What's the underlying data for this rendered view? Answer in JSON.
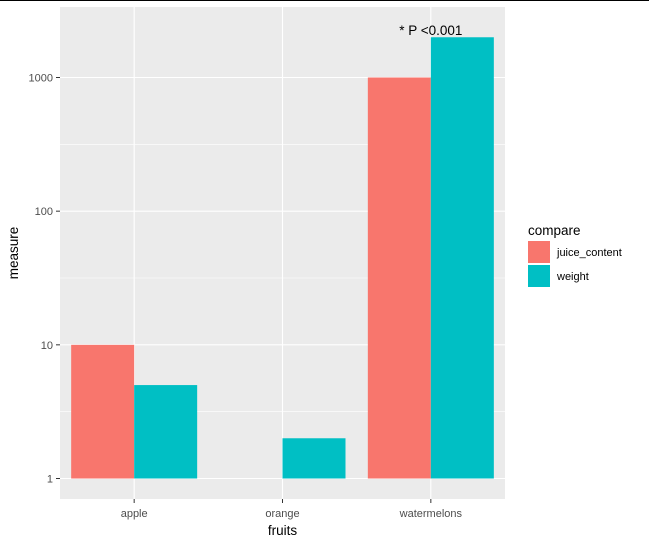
{
  "chart_data": {
    "type": "bar",
    "categories": [
      "apple",
      "orange",
      "watermelons"
    ],
    "series": [
      {
        "name": "juice_content",
        "values": [
          10,
          null,
          1000
        ],
        "color": "#F8766D"
      },
      {
        "name": "weight",
        "values": [
          5,
          2,
          2000
        ],
        "color": "#00BFC4"
      }
    ],
    "xlabel": "fruits",
    "ylabel": "measure",
    "y_scale": "log10",
    "y_ticks": [
      1,
      10,
      100,
      1000
    ],
    "y_tick_labels": [
      "1",
      "10",
      "100",
      "1000"
    ],
    "ylim": [
      0.8,
      2500
    ],
    "legend": {
      "title": "compare",
      "position": "right"
    },
    "annotation": {
      "text": "* P <0.001",
      "category": "watermelons"
    },
    "grid": true,
    "panel_background": "#EBEBEB",
    "grid_color": "#FFFFFF"
  }
}
